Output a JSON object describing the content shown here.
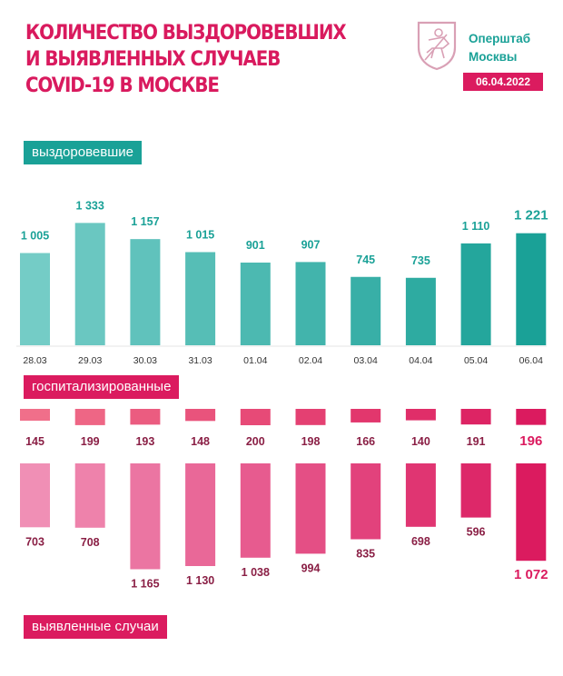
{
  "header": {
    "title_lines": [
      "КОЛИЧЕСТВО ВЫЗДОРОВЕВШИХ",
      "И ВЫЯВЛЕННЫХ СЛУЧАЕВ",
      "COVID-19 В МОСКВЕ"
    ],
    "org_lines": [
      "Оперштаб",
      "Москвы"
    ],
    "date": "06.04.2022"
  },
  "colors": {
    "title": "#d91a5e",
    "teal": "#1aa197",
    "pink": "#db1b5f",
    "teal_light": "#74ccc6",
    "pink_light": "#f08fb5"
  },
  "chart_data": {
    "type": "bar",
    "title": "Количество выздоровевших и выявленных случаев COVID-19 в Москве",
    "categories": [
      "28.03",
      "29.03",
      "30.03",
      "31.03",
      "01.04",
      "02.04",
      "03.04",
      "04.04",
      "05.04",
      "06.04"
    ],
    "series": [
      {
        "name": "выздоровевшие",
        "values": [
          1005,
          1333,
          1157,
          1015,
          901,
          907,
          745,
          735,
          1110,
          1221
        ],
        "labels": [
          "1 005",
          "1 333",
          "1 157",
          "1 015",
          "901",
          "907",
          "745",
          "735",
          "1 110",
          "1 221"
        ]
      },
      {
        "name": "госпитализированные",
        "values": [
          145,
          199,
          193,
          148,
          200,
          198,
          166,
          140,
          191,
          196
        ],
        "labels": [
          "145",
          "199",
          "193",
          "148",
          "200",
          "198",
          "166",
          "140",
          "191",
          "196"
        ]
      },
      {
        "name": "выявленные случаи",
        "values": [
          703,
          708,
          1165,
          1130,
          1038,
          994,
          835,
          698,
          596,
          1072
        ],
        "labels": [
          "703",
          "708",
          "1 165",
          "1 130",
          "1 038",
          "994",
          "835",
          "698",
          "596",
          "1 072"
        ]
      }
    ],
    "legend": [
      "выздоровевшие",
      "госпитализированные",
      "выявленные случаи"
    ]
  }
}
